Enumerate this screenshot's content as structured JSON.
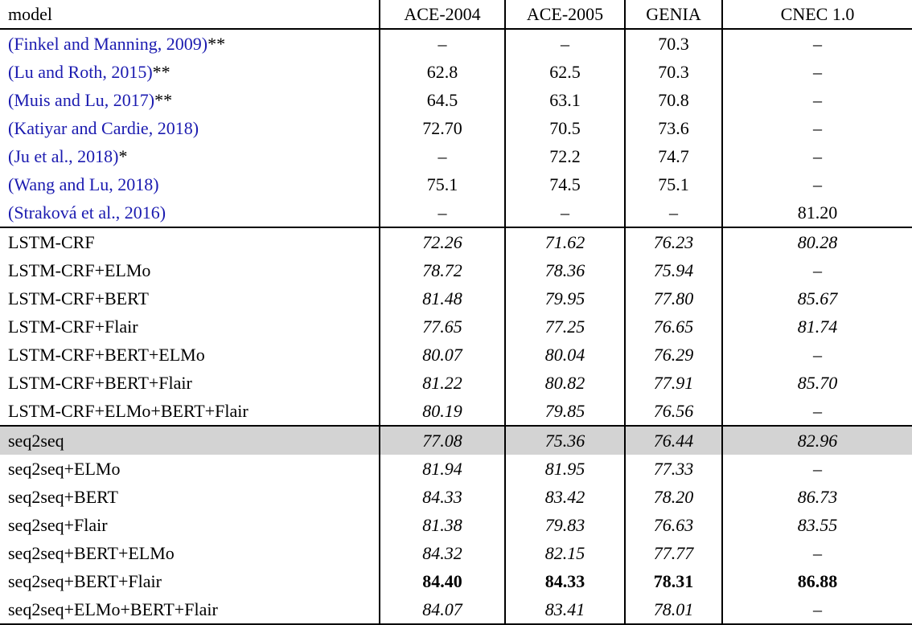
{
  "styles": {
    "citation_color": "#1b1bb0",
    "highlight_row_bg": "#d3d3d3",
    "rule_color": "#000000"
  },
  "table": {
    "columns": [
      "model",
      "ACE-2004",
      "ACE-2005",
      "GENIA",
      "CNEC 1.0"
    ],
    "sections": [
      {
        "name": "prior-work",
        "model_style": "citation",
        "value_style": "roman",
        "rows": [
          {
            "model": "(Finkel and Manning, 2009)",
            "suffix": "**",
            "values": [
              "–",
              "–",
              "70.3",
              "–"
            ]
          },
          {
            "model": "(Lu and Roth, 2015)",
            "suffix": "**",
            "values": [
              "62.8",
              "62.5",
              "70.3",
              "–"
            ]
          },
          {
            "model": "(Muis and Lu, 2017)",
            "suffix": "**",
            "values": [
              "64.5",
              "63.1",
              "70.8",
              "–"
            ]
          },
          {
            "model": "(Katiyar and Cardie, 2018)",
            "suffix": "",
            "values": [
              "72.70",
              "70.5",
              "73.6",
              "–"
            ]
          },
          {
            "model": "(Ju et al., 2018)",
            "suffix": "*",
            "values": [
              "–",
              "72.2",
              "74.7",
              "–"
            ]
          },
          {
            "model": "(Wang and Lu, 2018)",
            "suffix": "",
            "values": [
              "75.1",
              "74.5",
              "75.1",
              "–"
            ]
          },
          {
            "model": "(Straková et al., 2016)",
            "suffix": "",
            "values": [
              "–",
              "–",
              "–",
              "81.20"
            ]
          }
        ]
      },
      {
        "name": "lstm-crf",
        "model_style": "plain",
        "value_style": "italic",
        "rows": [
          {
            "model": "LSTM-CRF",
            "values": [
              "72.26",
              "71.62",
              "76.23",
              "80.28"
            ]
          },
          {
            "model": "LSTM-CRF+ELMo",
            "values": [
              "78.72",
              "78.36",
              "75.94",
              "–"
            ]
          },
          {
            "model": "LSTM-CRF+BERT",
            "values": [
              "81.48",
              "79.95",
              "77.80",
              "85.67"
            ]
          },
          {
            "model": "LSTM-CRF+Flair",
            "values": [
              "77.65",
              "77.25",
              "76.65",
              "81.74"
            ]
          },
          {
            "model": "LSTM-CRF+BERT+ELMo",
            "values": [
              "80.07",
              "80.04",
              "76.29",
              "–"
            ]
          },
          {
            "model": "LSTM-CRF+BERT+Flair",
            "values": [
              "81.22",
              "80.82",
              "77.91",
              "85.70"
            ]
          },
          {
            "model": "LSTM-CRF+ELMo+BERT+Flair",
            "values": [
              "80.19",
              "79.85",
              "76.56",
              "–"
            ]
          }
        ]
      },
      {
        "name": "seq2seq",
        "model_style": "plain",
        "value_style": "italic",
        "rows": [
          {
            "model": "seq2seq",
            "highlight": true,
            "values": [
              "77.08",
              "75.36",
              "76.44",
              "82.96"
            ]
          },
          {
            "model": "seq2seq+ELMo",
            "values": [
              "81.94",
              "81.95",
              "77.33",
              "–"
            ]
          },
          {
            "model": "seq2seq+BERT",
            "values": [
              "84.33",
              "83.42",
              "78.20",
              "86.73"
            ]
          },
          {
            "model": "seq2seq+Flair",
            "values": [
              "81.38",
              "79.83",
              "76.63",
              "83.55"
            ]
          },
          {
            "model": "seq2seq+BERT+ELMo",
            "values": [
              "84.32",
              "82.15",
              "77.77",
              "–"
            ]
          },
          {
            "model": "seq2seq+BERT+Flair",
            "bold": true,
            "values": [
              "84.40",
              "84.33",
              "78.31",
              "86.88"
            ]
          },
          {
            "model": "seq2seq+ELMo+BERT+Flair",
            "values": [
              "84.07",
              "83.41",
              "78.01",
              "–"
            ]
          }
        ]
      }
    ]
  }
}
